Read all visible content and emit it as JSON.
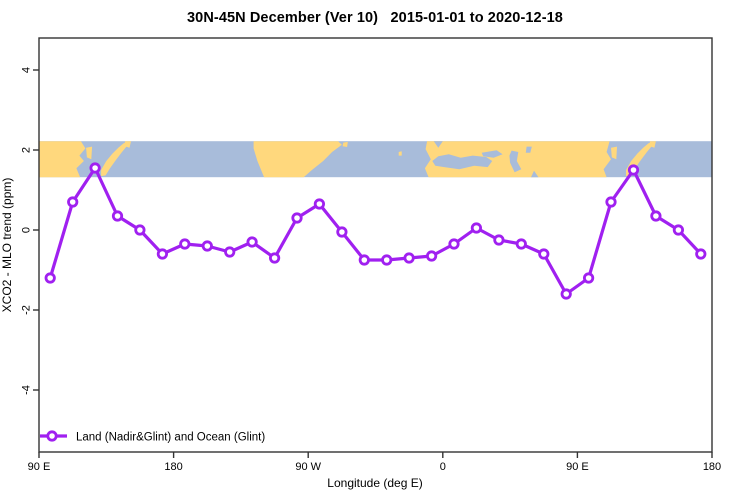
{
  "colors": {
    "line": "#A020F0",
    "marker_fill": "#FFFFFF",
    "land": "#FFD87D",
    "ocean": "#A8BCDA",
    "axis": "#333333",
    "text": "#000000",
    "background": "#FFFFFF"
  },
  "chart_data": {
    "type": "line",
    "title": "30N-45N December (Ver 10)   2015-01-01 to 2020-12-18",
    "xlabel": "Longitude (deg E)",
    "ylabel": "XCO2 - MLO trend (ppm)",
    "xlim": [
      90,
      540
    ],
    "ylim": [
      -5.55,
      4.8
    ],
    "grid": false,
    "x_ticks": [
      {
        "value": 90,
        "label": "90 E"
      },
      {
        "value": 180,
        "label": "180"
      },
      {
        "value": 270,
        "label": "90 W"
      },
      {
        "value": 360,
        "label": "0"
      },
      {
        "value": 450,
        "label": "90 E"
      },
      {
        "value": 540,
        "label": "180"
      }
    ],
    "y_ticks": [
      {
        "value": -4,
        "label": "-4"
      },
      {
        "value": -2,
        "label": "-2"
      },
      {
        "value": 0,
        "label": "0"
      },
      {
        "value": 2,
        "label": "2"
      },
      {
        "value": 4,
        "label": "4"
      }
    ],
    "series": [
      {
        "name": "Land (Nadir&Glint) and Ocean (Glint)",
        "x": [
          97.5,
          112.5,
          127.5,
          142.5,
          157.5,
          172.5,
          187.5,
          202.5,
          217.5,
          232.5,
          247.5,
          262.5,
          277.5,
          292.5,
          307.5,
          322.5,
          337.5,
          352.5,
          367.5,
          382.5,
          397.5,
          412.5,
          427.5,
          442.5,
          457.5,
          472.5,
          487.5,
          502.5,
          517.5,
          532.5
        ],
        "y": [
          -1.2,
          0.7,
          1.55,
          0.35,
          0,
          -0.6,
          -0.35,
          -0.4,
          -0.55,
          -0.3,
          -0.7,
          0.3,
          0.65,
          -0.05,
          -0.75,
          -0.75,
          -0.7,
          -0.65,
          -0.35,
          0.05,
          -0.25,
          -0.35,
          -0.6,
          -1.6,
          -1.2,
          0.7,
          1.5,
          0.35,
          0,
          -0.6
        ]
      }
    ],
    "legend": {
      "position": "bottom-left",
      "label": "Land (Nadir&Glint) and Ocean (Glint)"
    },
    "map_band": {
      "description": "world land/ocean strip for 30N-45N",
      "y_top_value": 2.22,
      "y_bottom_value": 1.32,
      "land_polygons": [
        [
          [
            90,
            0
          ],
          [
            118,
            0
          ],
          [
            121,
            0.2
          ],
          [
            117,
            0.4
          ],
          [
            120,
            0.55
          ],
          [
            115,
            0.75
          ],
          [
            117.5,
            1
          ],
          [
            90,
            1
          ]
        ],
        [
          [
            121.5,
            0.18
          ],
          [
            125.5,
            0.15
          ],
          [
            125,
            0.5
          ],
          [
            122,
            0.45
          ]
        ],
        [
          [
            131.5,
            0.8
          ],
          [
            135,
            0.55
          ],
          [
            139,
            0.35
          ],
          [
            143,
            0.18
          ],
          [
            146.5,
            0.06
          ],
          [
            148.5,
            0.02
          ],
          [
            149.5,
            0.1
          ],
          [
            145.5,
            0.3
          ],
          [
            141.5,
            0.52
          ],
          [
            137.5,
            0.75
          ],
          [
            134.5,
            0.95
          ],
          [
            131.5,
            0.97
          ]
        ],
        [
          [
            147.5,
            0
          ],
          [
            151.5,
            0
          ],
          [
            150.5,
            0.18
          ],
          [
            147.5,
            0.14
          ]
        ],
        [
          [
            233.5,
            0
          ],
          [
            290,
            0
          ],
          [
            292.5,
            0.1
          ],
          [
            286,
            0.3
          ],
          [
            280,
            0.55
          ],
          [
            272.5,
            0.8
          ],
          [
            267,
            1
          ],
          [
            240.5,
            1
          ],
          [
            236,
            0.55
          ],
          [
            233.5,
            0.2
          ]
        ],
        [
          [
            293.5,
            0.04
          ],
          [
            296.5,
            0.02
          ],
          [
            296,
            0.16
          ],
          [
            293,
            0.14
          ]
        ],
        [
          [
            330.5,
            0.3
          ],
          [
            332.5,
            0.28
          ],
          [
            332.5,
            0.4
          ],
          [
            330.5,
            0.4
          ]
        ],
        [
          [
            349.5,
            0
          ],
          [
            471.5,
            0
          ],
          [
            469.5,
            0.3
          ],
          [
            472.5,
            0.5
          ],
          [
            467.5,
            0.78
          ],
          [
            469.5,
            1
          ],
          [
            350.5,
            1
          ],
          [
            348,
            0.75
          ],
          [
            352,
            0.5
          ],
          [
            348.5,
            0.22
          ]
        ],
        [
          [
            472.5,
            0.18
          ],
          [
            476.5,
            0.15
          ],
          [
            476,
            0.5
          ],
          [
            473,
            0.45
          ]
        ],
        [
          [
            482.5,
            0.8
          ],
          [
            486,
            0.55
          ],
          [
            490,
            0.35
          ],
          [
            494,
            0.18
          ],
          [
            497.5,
            0.06
          ],
          [
            499.5,
            0.02
          ],
          [
            500.5,
            0.1
          ],
          [
            496.5,
            0.3
          ],
          [
            492.5,
            0.52
          ],
          [
            488.5,
            0.75
          ],
          [
            485.5,
            0.95
          ],
          [
            482.5,
            0.97
          ]
        ],
        [
          [
            498.5,
            0
          ],
          [
            502.5,
            0
          ],
          [
            501.5,
            0.18
          ],
          [
            498.5,
            0.14
          ]
        ]
      ],
      "ocean_patches": [
        [
          [
            353,
            0.55
          ],
          [
            357,
            0.42
          ],
          [
            364,
            0.36
          ],
          [
            372,
            0.46
          ],
          [
            380,
            0.4
          ],
          [
            389,
            0.44
          ],
          [
            393,
            0.55
          ],
          [
            390,
            0.72
          ],
          [
            381,
            0.68
          ],
          [
            371,
            0.78
          ],
          [
            361,
            0.72
          ],
          [
            355,
            0.68
          ]
        ],
        [
          [
            386,
            0.32
          ],
          [
            396,
            0.25
          ],
          [
            400,
            0.36
          ],
          [
            394,
            0.46
          ],
          [
            387,
            0.42
          ]
        ],
        [
          [
            406,
            0.26
          ],
          [
            410.5,
            0.3
          ],
          [
            409.5,
            0.55
          ],
          [
            412.5,
            0.78
          ],
          [
            408,
            0.86
          ],
          [
            405,
            0.6
          ],
          [
            404.5,
            0.4
          ]
        ],
        [
          [
            354,
            0
          ],
          [
            360,
            0
          ],
          [
            357,
            0.18
          ]
        ],
        [
          [
            416,
            0.15
          ],
          [
            419.5,
            0.15
          ],
          [
            418.5,
            0.32
          ],
          [
            415.5,
            0.32
          ]
        ],
        [
          [
            419,
            1
          ],
          [
            424,
            1
          ],
          [
            421,
            0.82
          ]
        ]
      ]
    }
  }
}
